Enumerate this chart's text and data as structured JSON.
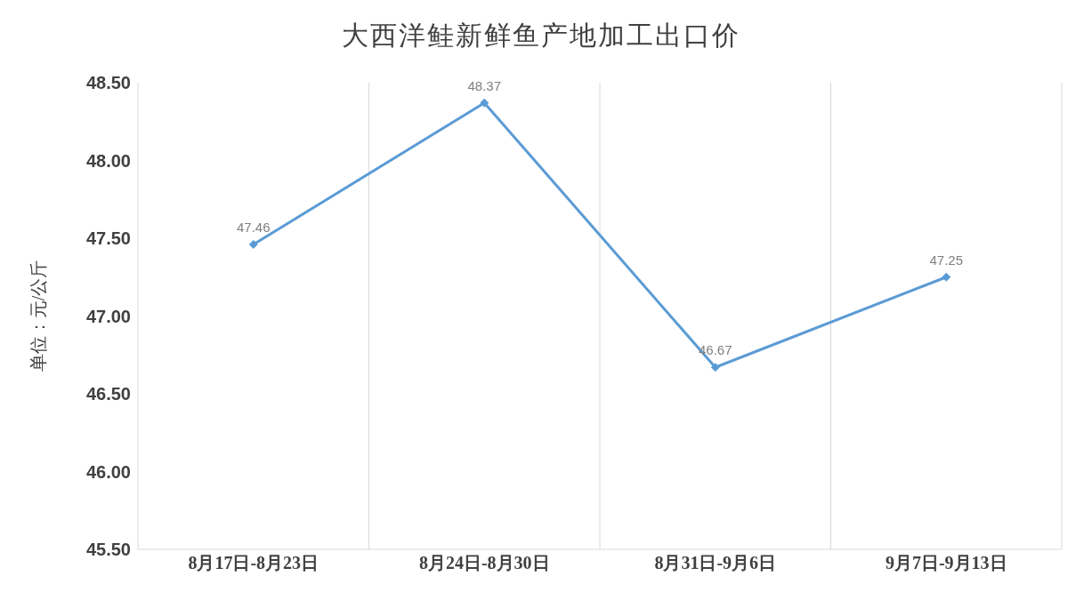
{
  "chart_data": {
    "type": "line",
    "title": "大西洋鲑新鲜鱼产地加工出口价",
    "ylabel": "单位：元/公斤",
    "categories": [
      "8月17日-8月23日",
      "8月24日-8月30日",
      "8月31日-9月6日",
      "9月7日-9月13日"
    ],
    "series": [
      {
        "color": "#5b9bd5",
        "values": [
          47.46,
          48.37,
          46.67,
          47.25
        ]
      }
    ],
    "ylim": [
      45.5,
      48.5
    ],
    "yticks": [
      {
        "value": 45.5,
        "label": "45.50"
      },
      {
        "value": 46,
        "label": "46.00"
      },
      {
        "value": 46.5,
        "label": "46.50"
      },
      {
        "value": 47,
        "label": "47.00"
      },
      {
        "value": 47.5,
        "label": "47.50"
      },
      {
        "value": 48,
        "label": "48.00"
      },
      {
        "value": 48.5,
        "label": "48.50"
      }
    ],
    "grid": "x",
    "marker": "diamond",
    "line_style": "solid",
    "data_labels": true,
    "legend": false
  }
}
